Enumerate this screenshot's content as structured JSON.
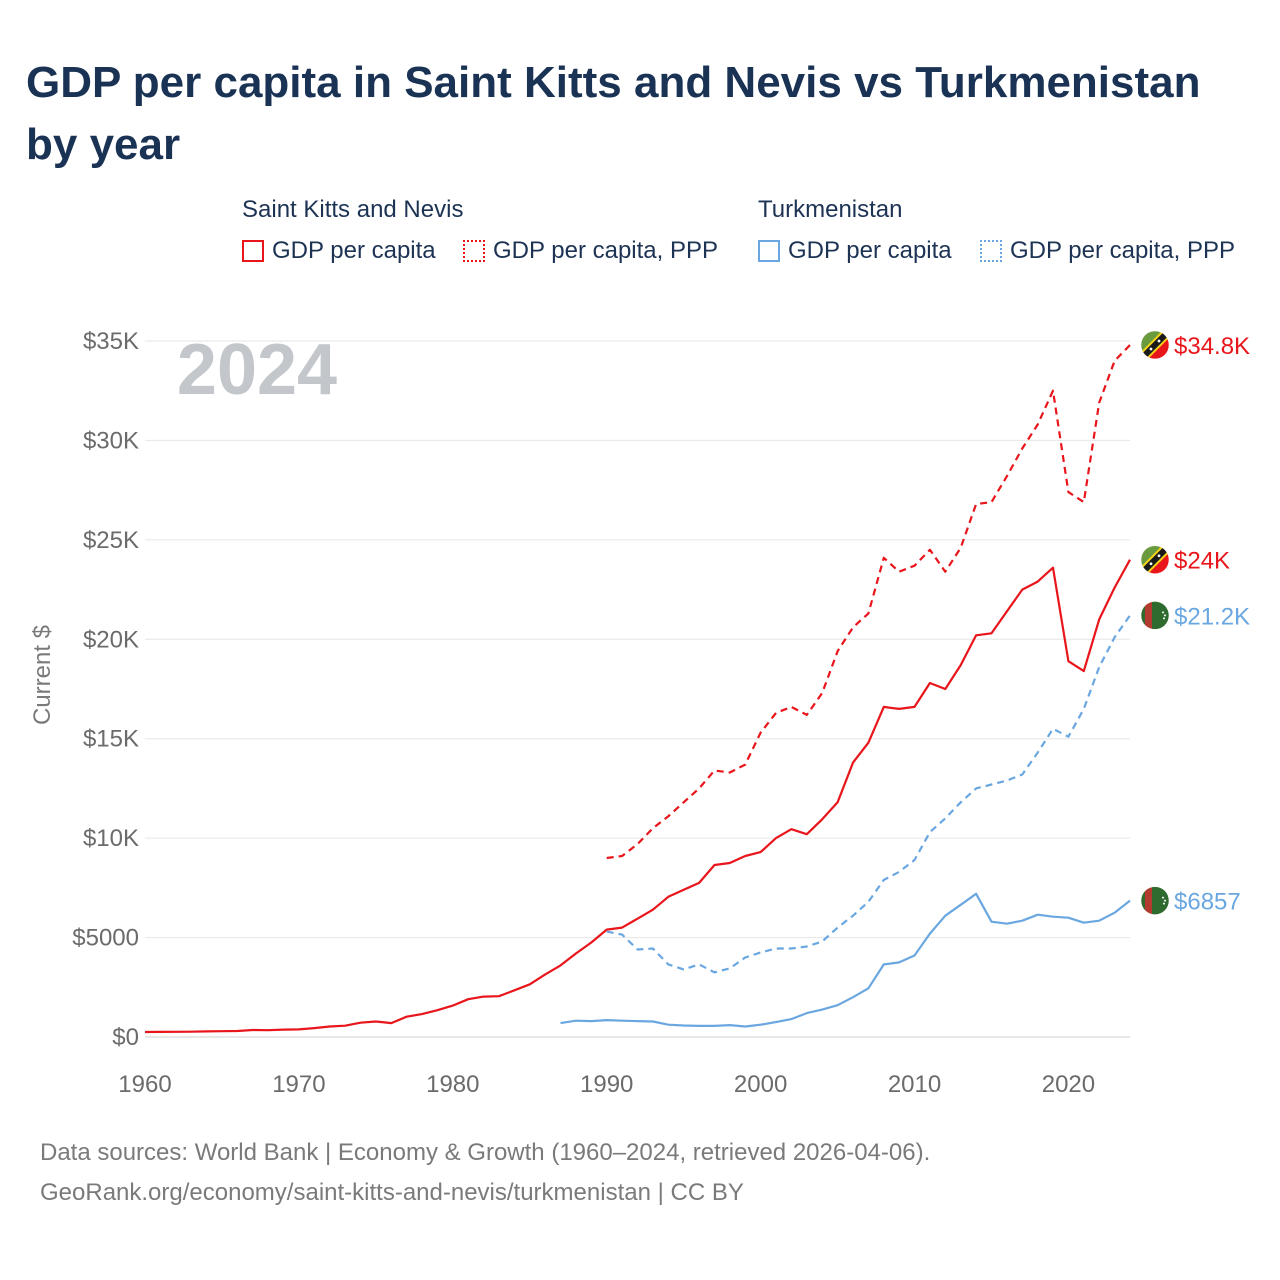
{
  "title": "GDP per capita in Saint Kitts and Nevis vs Turkmenistan by year",
  "legend": {
    "groups": [
      {
        "country": "Saint Kitts and Nevis",
        "items": [
          "GDP per capita",
          "GDP per capita, PPP"
        ],
        "color": "#e8151b"
      },
      {
        "country": "Turkmenistan",
        "items": [
          "GDP per capita",
          "GDP per capita, PPP"
        ],
        "color": "#6aa7e0"
      }
    ]
  },
  "year_label": "2024",
  "source_lines": [
    "Data sources: World Bank | Economy & Growth (1960–2024, retrieved 2026-04-06).",
    "GeoRank.org/economy/saint-kitts-and-nevis/turkmenistan | CC BY"
  ],
  "chart_data": {
    "type": "line",
    "ylabel": "Current $",
    "xlim": [
      1960,
      2024
    ],
    "ylim": [
      0,
      35000
    ],
    "grid": true,
    "y_ticks": [
      0,
      5000,
      10000,
      15000,
      20000,
      25000,
      30000,
      35000
    ],
    "y_tick_labels": [
      "$0",
      "$5000",
      "$10K",
      "$15K",
      "$20K",
      "$25K",
      "$30K",
      "$35K"
    ],
    "x_ticks": [
      1960,
      1970,
      1980,
      1990,
      2000,
      2010,
      2020
    ],
    "x_tick_labels": [
      "1960",
      "1970",
      "1980",
      "1990",
      "2000",
      "2010",
      "2020"
    ],
    "series": [
      {
        "name": "Saint Kitts and Nevis GDP per capita, PPP",
        "country": "Saint Kitts and Nevis",
        "color": "#e8151b",
        "dash": "dashed",
        "end_label": "$34.8K",
        "flag": "kn",
        "x": [
          1990,
          1991,
          1992,
          1993,
          1994,
          1995,
          1996,
          1997,
          1998,
          1999,
          2000,
          2001,
          2002,
          2003,
          2004,
          2005,
          2006,
          2007,
          2008,
          2009,
          2010,
          2011,
          2012,
          2013,
          2014,
          2015,
          2016,
          2017,
          2018,
          2019,
          2020,
          2021,
          2022,
          2023,
          2024
        ],
        "y": [
          9000,
          9100,
          9700,
          10500,
          11100,
          11800,
          12500,
          13400,
          13300,
          13700,
          15300,
          16300,
          16600,
          16200,
          17300,
          19400,
          20600,
          21300,
          24100,
          23400,
          23700,
          24500,
          23400,
          24600,
          26800,
          26900,
          28200,
          29600,
          30800,
          32500,
          27400,
          26900,
          31900,
          34000,
          34800
        ]
      },
      {
        "name": "Saint Kitts and Nevis GDP per capita",
        "country": "Saint Kitts and Nevis",
        "color": "#e8151b",
        "dash": "solid",
        "end_label": "$24K",
        "flag": "kn",
        "x": [
          1960,
          1961,
          1962,
          1963,
          1964,
          1965,
          1966,
          1967,
          1968,
          1969,
          1970,
          1971,
          1972,
          1973,
          1974,
          1975,
          1976,
          1977,
          1978,
          1979,
          1980,
          1981,
          1982,
          1983,
          1984,
          1985,
          1986,
          1987,
          1988,
          1989,
          1990,
          1991,
          1992,
          1993,
          1994,
          1995,
          1996,
          1997,
          1998,
          1999,
          2000,
          2001,
          2002,
          2003,
          2004,
          2005,
          2006,
          2007,
          2008,
          2009,
          2010,
          2011,
          2012,
          2013,
          2014,
          2015,
          2016,
          2017,
          2018,
          2019,
          2020,
          2021,
          2022,
          2023,
          2024
        ],
        "y": [
          250,
          255,
          260,
          265,
          280,
          290,
          300,
          350,
          340,
          370,
          380,
          450,
          530,
          570,
          720,
          780,
          700,
          1020,
          1150,
          1350,
          1580,
          1900,
          2030,
          2050,
          2350,
          2650,
          3150,
          3600,
          4200,
          4750,
          5400,
          5500,
          5950,
          6400,
          7050,
          7400,
          7750,
          8650,
          8750,
          9100,
          9300,
          10000,
          10450,
          10200,
          10950,
          11800,
          13800,
          14800,
          16600,
          16500,
          16600,
          17800,
          17500,
          18700,
          20200,
          20300,
          21400,
          22500,
          22900,
          23600,
          18900,
          18400,
          21000,
          22600,
          24000
        ]
      },
      {
        "name": "Turkmenistan GDP per capita, PPP",
        "country": "Turkmenistan",
        "color": "#6aa7e0",
        "dash": "dashed",
        "end_label": "$21.2K",
        "flag": "tm",
        "x": [
          1990,
          1991,
          1992,
          1993,
          1994,
          1995,
          1996,
          1997,
          1998,
          1999,
          2000,
          2001,
          2002,
          2003,
          2004,
          2005,
          2006,
          2007,
          2008,
          2009,
          2010,
          2011,
          2012,
          2013,
          2014,
          2015,
          2016,
          2017,
          2018,
          2019,
          2020,
          2021,
          2022,
          2023,
          2024
        ],
        "y": [
          5300,
          5150,
          4400,
          4450,
          3650,
          3400,
          3650,
          3250,
          3450,
          4000,
          4250,
          4450,
          4450,
          4550,
          4800,
          5500,
          6100,
          6800,
          7900,
          8300,
          8900,
          10300,
          11000,
          11800,
          12500,
          12700,
          12900,
          13200,
          14300,
          15500,
          15100,
          16500,
          18600,
          20100,
          21200
        ]
      },
      {
        "name": "Turkmenistan GDP per capita",
        "country": "Turkmenistan",
        "color": "#6aa7e0",
        "dash": "solid",
        "end_label": "$6857",
        "flag": "tm",
        "x": [
          1987,
          1988,
          1989,
          1990,
          1991,
          1992,
          1993,
          1994,
          1995,
          1996,
          1997,
          1998,
          1999,
          2000,
          2001,
          2002,
          2003,
          2004,
          2005,
          2006,
          2007,
          2008,
          2009,
          2010,
          2011,
          2012,
          2013,
          2014,
          2015,
          2016,
          2017,
          2018,
          2019,
          2020,
          2021,
          2022,
          2023,
          2024
        ],
        "y": [
          700,
          820,
          800,
          850,
          820,
          800,
          780,
          620,
          580,
          560,
          560,
          600,
          530,
          620,
          750,
          900,
          1200,
          1380,
          1600,
          2000,
          2450,
          3650,
          3750,
          4100,
          5200,
          6100,
          6650,
          7200,
          5800,
          5700,
          5850,
          6150,
          6050,
          6000,
          5750,
          5850,
          6250,
          6857
        ]
      }
    ]
  }
}
